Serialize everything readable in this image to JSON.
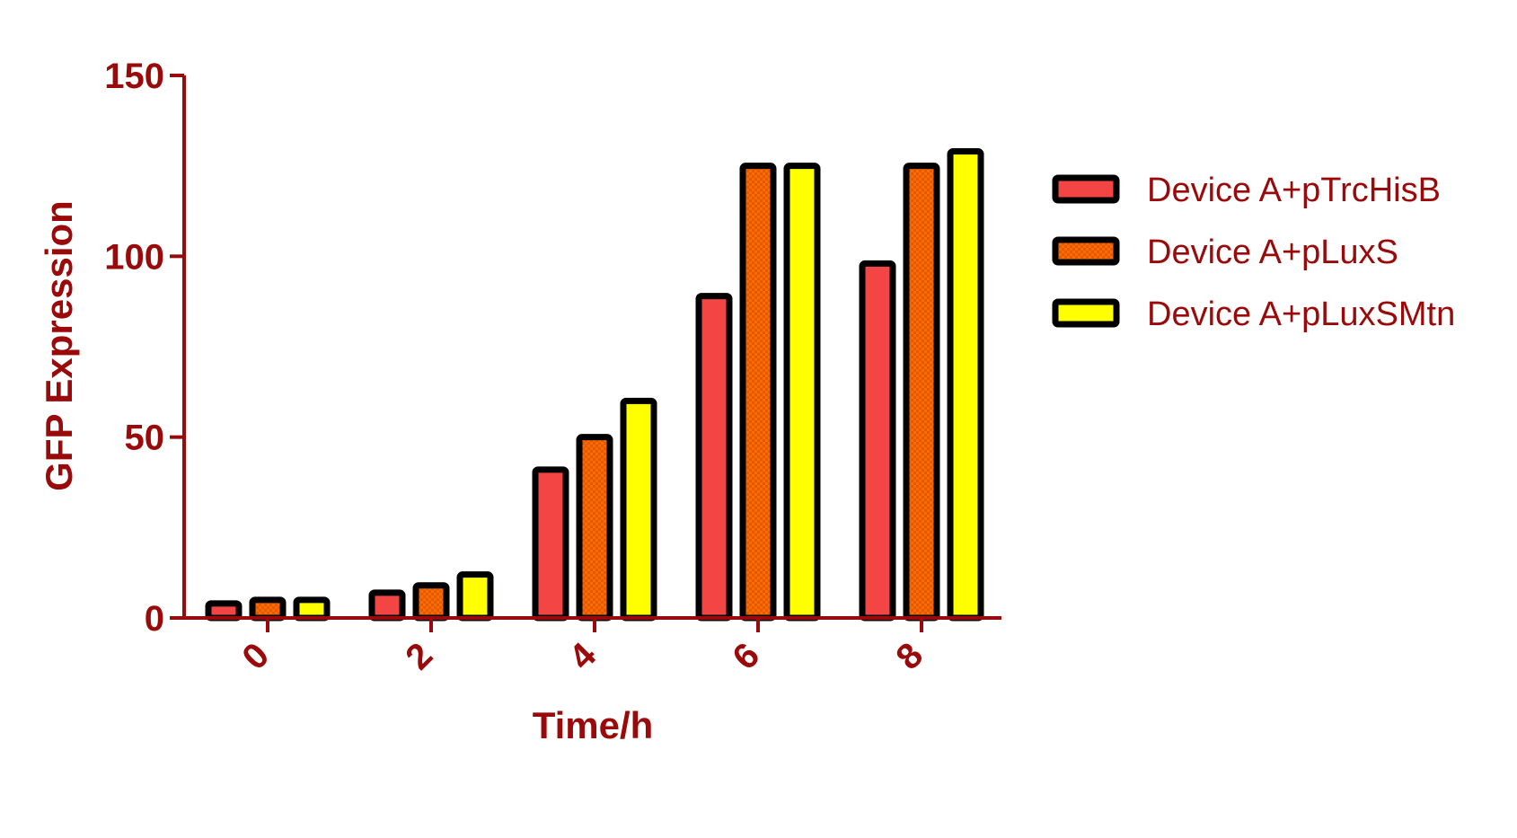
{
  "chart_data": {
    "type": "bar",
    "title": "",
    "xlabel": "Time/h",
    "ylabel": "GFP Expression",
    "categories": [
      "0",
      "2",
      "4",
      "6",
      "8"
    ],
    "ylim": [
      0,
      150
    ],
    "yticks": [
      "0",
      "50",
      "100",
      "150"
    ],
    "grid": false,
    "legend_position": "right",
    "series": [
      {
        "name": "Device A+pTrcHisB",
        "values": [
          4,
          7,
          41,
          89,
          98
        ],
        "color": "#f44545",
        "pattern": "solid"
      },
      {
        "name": "Device A+pLuxS",
        "values": [
          5,
          9,
          50,
          125,
          125
        ],
        "color": "#ff6a00",
        "pattern": "checker"
      },
      {
        "name": "Device A+pLuxSMtn",
        "values": [
          5,
          12,
          60,
          125,
          129
        ],
        "color": "#ffff00",
        "pattern": "solid"
      }
    ],
    "colors": {
      "text": "#9b0a0a",
      "axis": "#9b0a0a",
      "bar_outline": "#000000"
    }
  }
}
